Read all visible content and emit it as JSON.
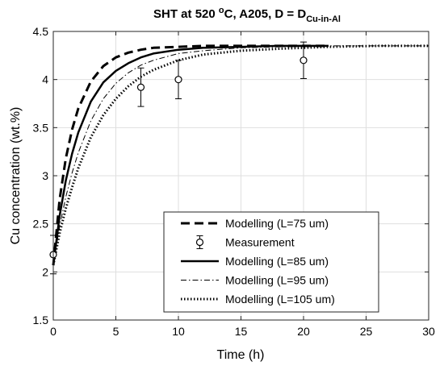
{
  "chart_data": {
    "type": "line",
    "title": {
      "main": "SHT at 520 ",
      "sup": "o",
      "mid": "C, A205, D = D",
      "sub": "Cu-in-Al"
    },
    "xlabel": "Time (h)",
    "ylabel": "Cu concentration (wt.%)",
    "xlim": [
      0,
      30
    ],
    "ylim": [
      1.5,
      4.5
    ],
    "xticks": [
      0,
      5,
      10,
      15,
      20,
      25,
      30
    ],
    "xtick_labels": [
      "0",
      "5",
      "10",
      "15",
      "20",
      "25",
      "30"
    ],
    "yticks": [
      1.5,
      2,
      2.5,
      3,
      3.5,
      4,
      4.5
    ],
    "ytick_labels": [
      "1.5",
      "2",
      "2.5",
      "3",
      "3.5",
      "4",
      "4.5"
    ],
    "grid": true,
    "legend_position": "bottom-right",
    "series": [
      {
        "name": "Modelling (L=75 um)",
        "style": "dashed",
        "x": [
          0,
          0.5,
          1,
          1.5,
          2,
          3,
          4,
          5,
          6,
          7,
          8,
          10,
          12,
          15,
          18,
          22
        ],
        "y": [
          2.07,
          2.75,
          3.18,
          3.48,
          3.7,
          3.98,
          4.14,
          4.23,
          4.28,
          4.31,
          4.33,
          4.34,
          4.35,
          4.35,
          4.35,
          4.35
        ]
      },
      {
        "name": "Measurement",
        "style": "markers",
        "x": [
          0,
          7,
          10,
          20
        ],
        "y": [
          2.18,
          3.92,
          4.0,
          4.2
        ],
        "err": [
          0.2,
          0.2,
          0.2,
          0.19
        ]
      },
      {
        "name": "Modelling (L=85 um)",
        "style": "solid",
        "x": [
          0,
          0.5,
          1,
          1.5,
          2,
          3,
          4,
          5,
          6,
          7,
          8,
          10,
          12,
          15,
          18,
          22
        ],
        "y": [
          2.07,
          2.58,
          2.95,
          3.23,
          3.45,
          3.77,
          3.97,
          4.09,
          4.17,
          4.23,
          4.27,
          4.31,
          4.33,
          4.34,
          4.35,
          4.35
        ]
      },
      {
        "name": "Modelling (L=95 um)",
        "style": "dashdot",
        "x": [
          0,
          0.5,
          1,
          1.5,
          2,
          3,
          4,
          5,
          6,
          7,
          8,
          10,
          12,
          15,
          18,
          22,
          26,
          30
        ],
        "y": [
          2.07,
          2.47,
          2.78,
          3.03,
          3.24,
          3.57,
          3.8,
          3.96,
          4.07,
          4.15,
          4.2,
          4.27,
          4.3,
          4.33,
          4.34,
          4.35,
          4.35,
          4.35
        ]
      },
      {
        "name": "Modelling (L=105 um)",
        "style": "dotted",
        "x": [
          0,
          0.5,
          1,
          1.5,
          2,
          3,
          4,
          5,
          6,
          7,
          8,
          10,
          12,
          15,
          18,
          22,
          26,
          30
        ],
        "y": [
          2.07,
          2.4,
          2.66,
          2.88,
          3.08,
          3.4,
          3.63,
          3.8,
          3.93,
          4.03,
          4.1,
          4.2,
          4.26,
          4.3,
          4.32,
          4.34,
          4.35,
          4.35
        ]
      }
    ]
  }
}
